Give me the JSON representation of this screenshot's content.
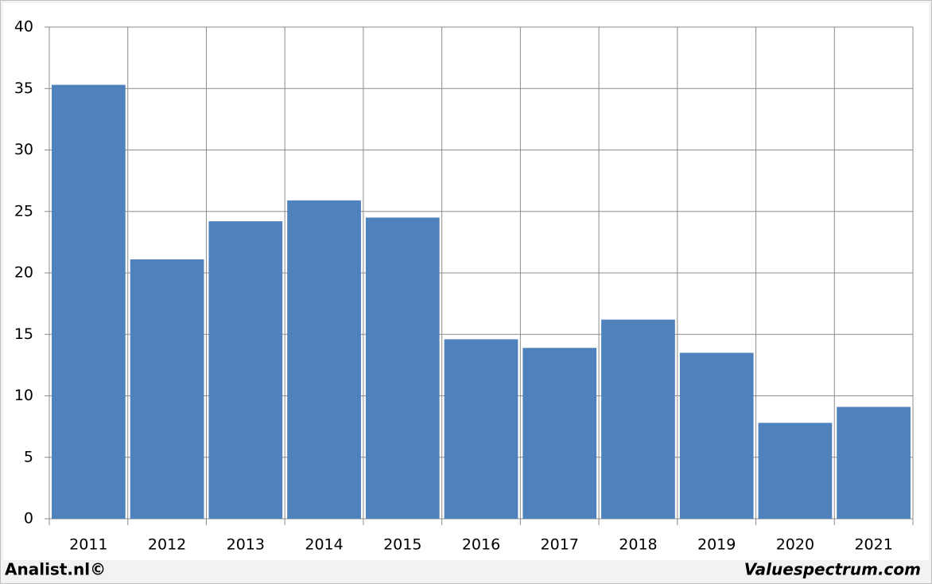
{
  "chart_data": {
    "type": "bar",
    "categories": [
      "2011",
      "2012",
      "2013",
      "2014",
      "2015",
      "2016",
      "2017",
      "2018",
      "2019",
      "2020",
      "2021"
    ],
    "values": [
      35.3,
      21.1,
      24.2,
      25.9,
      24.5,
      14.6,
      13.9,
      16.2,
      13.5,
      7.8,
      9.1
    ],
    "color": "#4f81bd",
    "ylim": [
      0,
      40
    ],
    "yticks": [
      0,
      5,
      10,
      15,
      20,
      25,
      30,
      35,
      40
    ],
    "grid": true
  },
  "footer": {
    "left": "Analist.nl©",
    "right": "Valuespectrum.com"
  }
}
